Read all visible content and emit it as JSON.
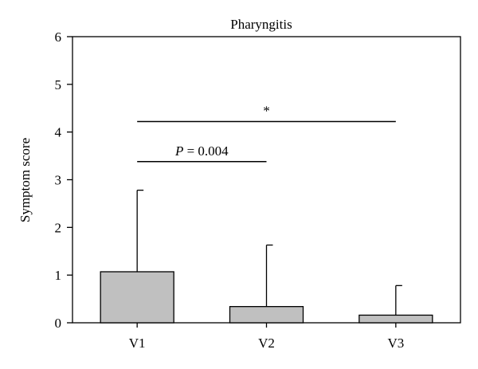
{
  "chart_data": {
    "type": "bar",
    "title": "Pharyngitis",
    "xlabel": "",
    "ylabel": "Symptom score",
    "categories": [
      "V1",
      "V2",
      "V3"
    ],
    "values": [
      1.07,
      0.34,
      0.16
    ],
    "error_upper": [
      2.78,
      1.63,
      0.78
    ],
    "ylim": [
      0,
      6
    ],
    "yticks": [
      "0",
      "1",
      "2",
      "3",
      "4",
      "5",
      "6"
    ],
    "grid": false,
    "legend": "none",
    "bar_color": "#c0c0c0",
    "annotations": [
      {
        "from": "V1",
        "to": "V2",
        "y": 3.38,
        "label_italic": "P",
        "label_rest": " = 0.004"
      },
      {
        "from": "V1",
        "to": "V3",
        "y": 4.22,
        "label_italic": "",
        "label_rest": "*"
      }
    ]
  }
}
